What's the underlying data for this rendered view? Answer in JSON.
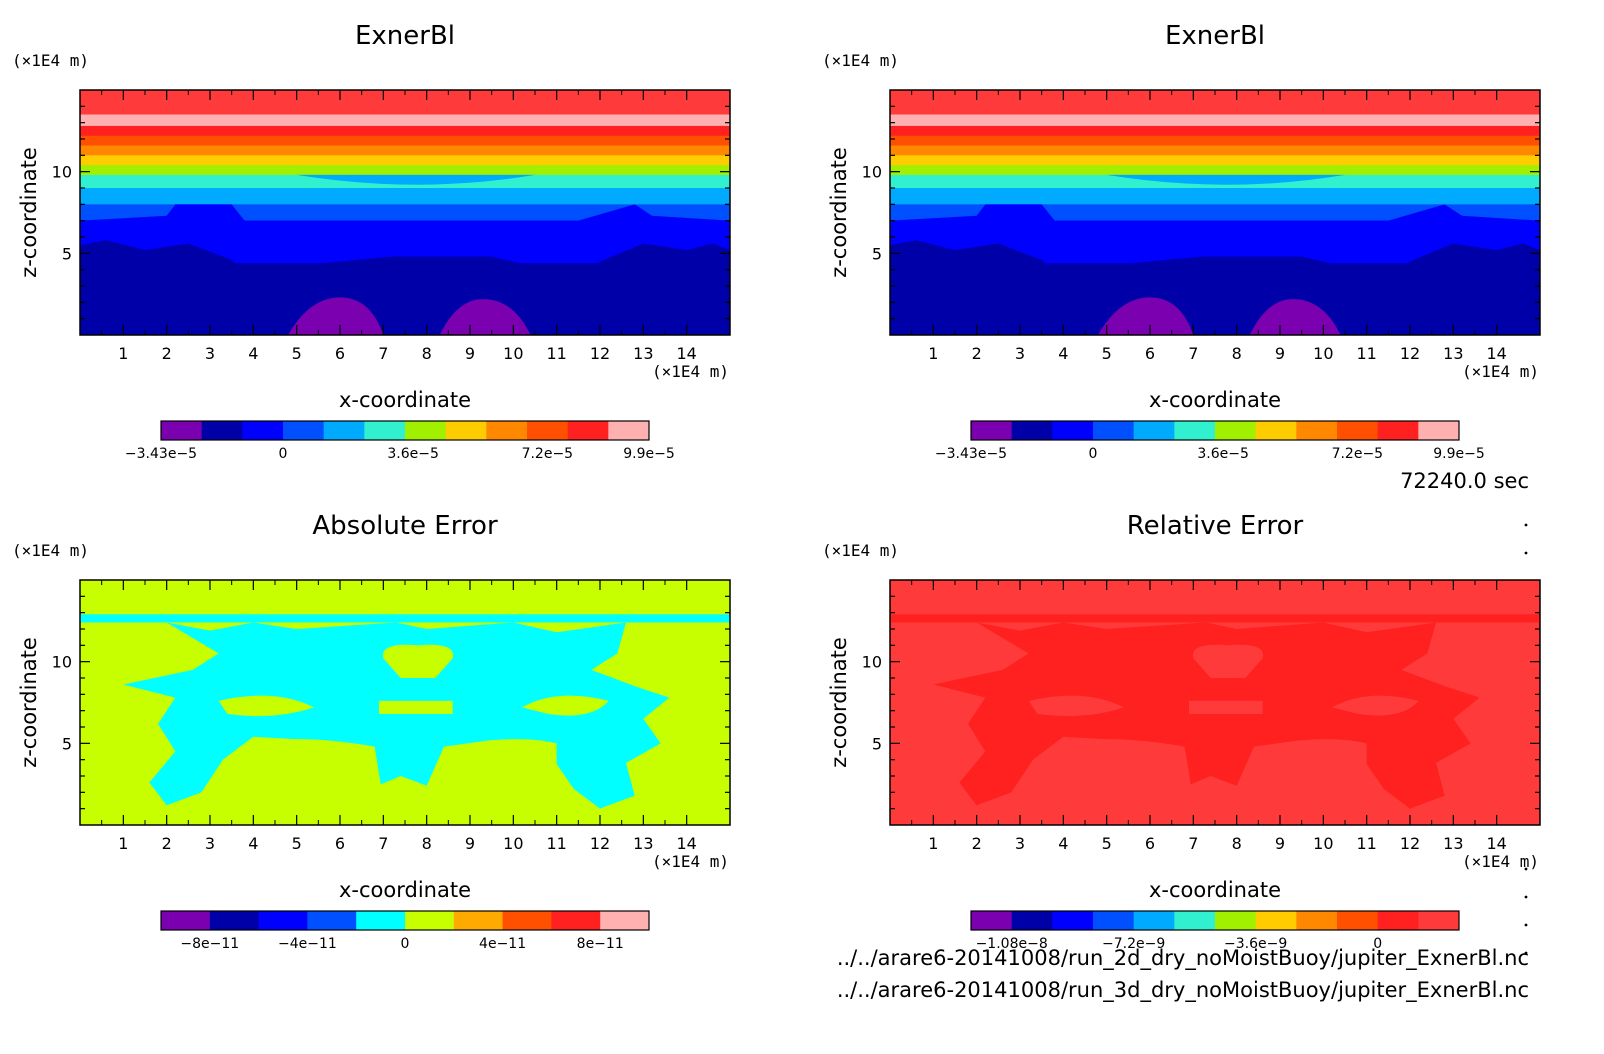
{
  "time_label": "72240.0 sec",
  "files": [
    "../../arare6-20141008/run_2d_dry_noMoistBuoy/jupiter_ExnerBl.nc",
    "../../arare6-20141008/run_3d_dry_noMoistBuoy/jupiter_ExnerBl.nc"
  ],
  "colors": {
    "purple": "#7a00b0",
    "navy": "#0000a8",
    "blue": "#0000ff",
    "mid_blue": "#0050ff",
    "sky": "#00aaff",
    "cyan": "#00ffff",
    "turquoise": "#30f0d0",
    "lime": "#c8ff00",
    "yellow_green": "#a0f000",
    "yellow": "#ffcc00",
    "orange": "#ff8800",
    "red_orange": "#ff5000",
    "red": "#ff2020",
    "light_red": "#ff3a3a",
    "pink": "#ffb0b0"
  },
  "chart_data": [
    {
      "type": "heatmap",
      "title": "ExnerBl",
      "xlabel": "x-coordinate",
      "ylabel": "z-coordinate",
      "x_unit": "(×1E4 m)",
      "y_unit": "(×1E4 m)",
      "xlim": [
        0,
        15
      ],
      "ylim": [
        0,
        15
      ],
      "x_ticks": [
        "1",
        "2",
        "3",
        "4",
        "5",
        "6",
        "7",
        "8",
        "9",
        "10",
        "11",
        "12",
        "13",
        "14"
      ],
      "y_ticks": [
        "5",
        "10"
      ],
      "colorbar": {
        "tick_labels": [
          "−3.43e−5",
          "0",
          "3.6e−5",
          "7.2e−5",
          "9.9e−5"
        ],
        "colors": [
          "#7a00b0",
          "#0000a8",
          "#0000ff",
          "#0050ff",
          "#00aaff",
          "#30f0d0",
          "#a0f000",
          "#ffcc00",
          "#ff8800",
          "#ff5000",
          "#ff2020",
          "#ffb0b0"
        ]
      },
      "bands_z": [
        {
          "z0": 0,
          "z1": 4.4,
          "color": "#0000a8"
        },
        {
          "z0": 4.4,
          "z1": 7.0,
          "color": "#0000ff"
        },
        {
          "z0": 7.0,
          "z1": 8.0,
          "color": "#0050ff"
        },
        {
          "z0": 8.0,
          "z1": 9.0,
          "color": "#00aaff"
        },
        {
          "z0": 9.0,
          "z1": 9.8,
          "color": "#30f0d0"
        },
        {
          "z0": 9.8,
          "z1": 10.4,
          "color": "#a0f000"
        },
        {
          "z0": 10.4,
          "z1": 11.0,
          "color": "#ffcc00"
        },
        {
          "z0": 11.0,
          "z1": 11.6,
          "color": "#ff8800"
        },
        {
          "z0": 11.6,
          "z1": 12.2,
          "color": "#ff5000"
        },
        {
          "z0": 12.2,
          "z1": 12.8,
          "color": "#ff2020"
        },
        {
          "z0": 12.8,
          "z1": 13.5,
          "color": "#ffb0b0"
        },
        {
          "z0": 13.5,
          "z1": 15.0,
          "color": "#ff3a3a"
        }
      ]
    },
    {
      "type": "heatmap",
      "title": "ExnerBl",
      "xlabel": "x-coordinate",
      "ylabel": "z-coordinate",
      "x_unit": "(×1E4 m)",
      "y_unit": "(×1E4 m)",
      "xlim": [
        0,
        15
      ],
      "ylim": [
        0,
        15
      ],
      "x_ticks": [
        "1",
        "2",
        "3",
        "4",
        "5",
        "6",
        "7",
        "8",
        "9",
        "10",
        "11",
        "12",
        "13",
        "14"
      ],
      "y_ticks": [
        "5",
        "10"
      ],
      "colorbar": {
        "tick_labels": [
          "−3.43e−5",
          "0",
          "3.6e−5",
          "7.2e−5",
          "9.9e−5"
        ],
        "colors": [
          "#7a00b0",
          "#0000a8",
          "#0000ff",
          "#0050ff",
          "#00aaff",
          "#30f0d0",
          "#a0f000",
          "#ffcc00",
          "#ff8800",
          "#ff5000",
          "#ff2020",
          "#ffb0b0"
        ]
      }
    },
    {
      "type": "heatmap",
      "title": "Absolute Error",
      "xlabel": "x-coordinate",
      "ylabel": "z-coordinate",
      "x_unit": "(×1E4 m)",
      "y_unit": "(×1E4 m)",
      "xlim": [
        0,
        15
      ],
      "ylim": [
        0,
        15
      ],
      "x_ticks": [
        "1",
        "2",
        "3",
        "4",
        "5",
        "6",
        "7",
        "8",
        "9",
        "10",
        "11",
        "12",
        "13",
        "14"
      ],
      "y_ticks": [
        "5",
        "10"
      ],
      "colorbar": {
        "tick_labels": [
          "−8e−11",
          "−4e−11",
          "0",
          "4e−11",
          "8e−11"
        ],
        "colors": [
          "#7a00b0",
          "#0000a8",
          "#0000ff",
          "#0050ff",
          "#00ffff",
          "#c8ff00",
          "#ffaa00",
          "#ff5000",
          "#ff2020",
          "#ffb0b0"
        ]
      },
      "fields": {
        "background": "#c8ff00",
        "secondary": "#00ffff"
      }
    },
    {
      "type": "heatmap",
      "title": "Relative Error",
      "xlabel": "x-coordinate",
      "ylabel": "z-coordinate",
      "x_unit": "(×1E4 m)",
      "y_unit": "(×1E4 m)",
      "xlim": [
        0,
        15
      ],
      "ylim": [
        0,
        15
      ],
      "x_ticks": [
        "1",
        "2",
        "3",
        "4",
        "5",
        "6",
        "7",
        "8",
        "9",
        "10",
        "11",
        "12",
        "13",
        "14"
      ],
      "y_ticks": [
        "5",
        "10"
      ],
      "colorbar": {
        "tick_labels": [
          "−1.08e−8",
          "−7.2e−9",
          "−3.6e−9",
          "0"
        ],
        "colors": [
          "#7a00b0",
          "#0000a8",
          "#0000ff",
          "#0050ff",
          "#00aaff",
          "#30f0d0",
          "#a0f000",
          "#ffcc00",
          "#ff8800",
          "#ff5000",
          "#ff2020",
          "#ff3a3a"
        ]
      },
      "fields": {
        "background": "#ff3a3a",
        "secondary": "#ff2020"
      }
    }
  ]
}
